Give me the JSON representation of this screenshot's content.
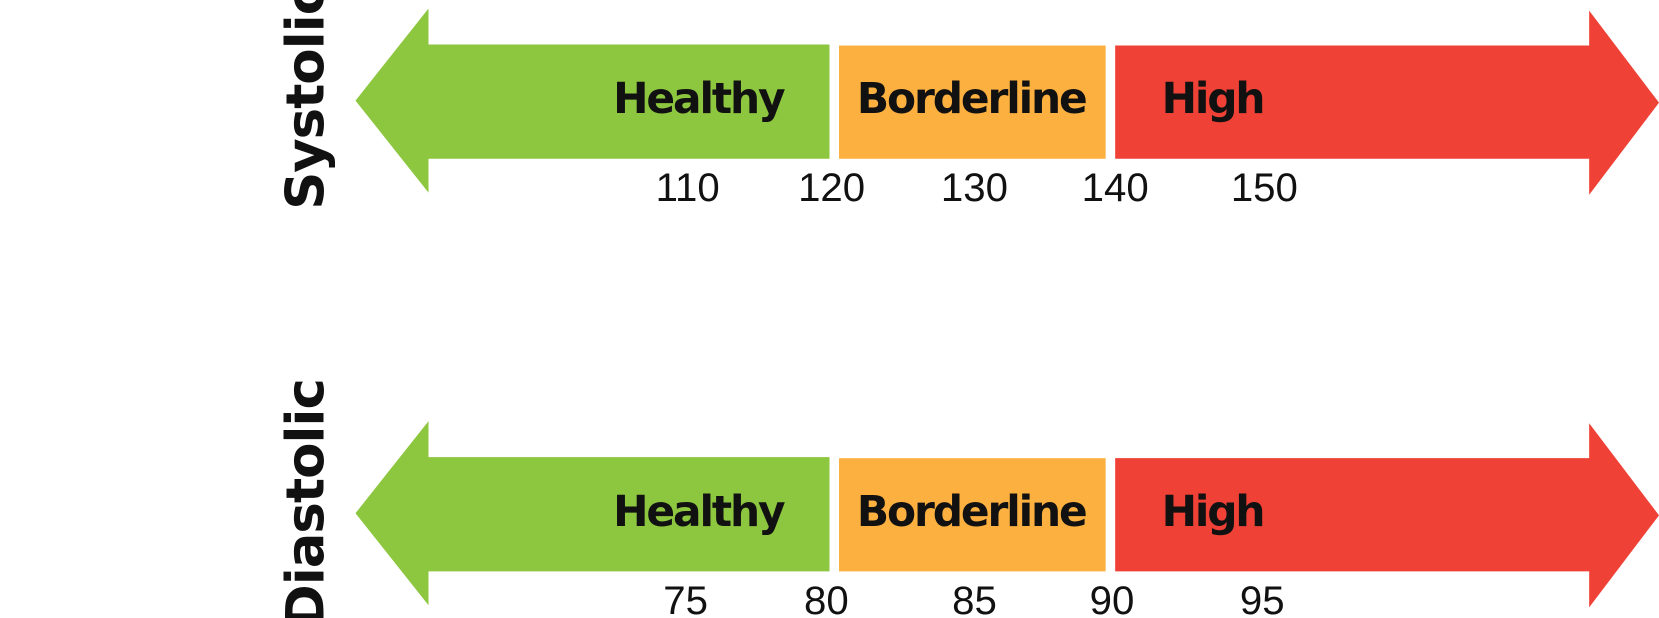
{
  "scales": [
    {
      "label": "Systolic",
      "segments": [
        "Healthy",
        "Borderline",
        "High"
      ],
      "ticks": [
        110,
        120,
        130,
        140,
        150
      ]
    },
    {
      "label": "Diastolic",
      "segments": [
        "Healthy",
        "Borderline",
        "High"
      ],
      "ticks": [
        75,
        80,
        85,
        90,
        95
      ]
    }
  ]
}
